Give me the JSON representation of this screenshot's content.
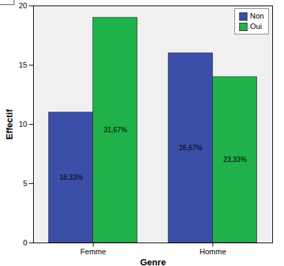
{
  "chart_data": {
    "type": "bar",
    "categories": [
      "Femme",
      "Homme"
    ],
    "series": [
      {
        "name": "Non",
        "color": "#3c4fa8",
        "values": [
          11,
          16
        ],
        "percent_labels": [
          "18,33%",
          "26,67%"
        ]
      },
      {
        "name": "Oui",
        "color": "#21b14b",
        "values": [
          19,
          14
        ],
        "percent_labels": [
          "31,67%",
          "23,33%"
        ]
      }
    ],
    "xlabel": "Genre",
    "ylabel": "Effectif",
    "ylim": [
      0,
      20
    ],
    "yticks": [
      0,
      5,
      10,
      15,
      20
    ],
    "legend": "top-right"
  }
}
